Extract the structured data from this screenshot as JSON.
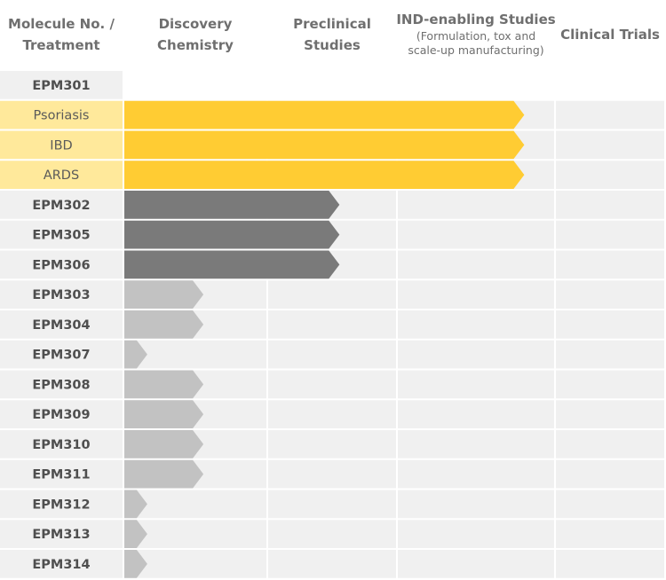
{
  "header": {
    "molecule": [
      "Molecule No. /",
      "Treatment"
    ],
    "phases": [
      {
        "lines": [
          "Discovery",
          "Chemistry"
        ]
      },
      {
        "lines": [
          "Preclinical",
          "Studies"
        ]
      },
      {
        "lines": [
          "IND-enabling Studies"
        ],
        "sub": [
          "(Formulation, tox and",
          "scale-up manufacturing)"
        ]
      },
      {
        "lines": [
          "Clinical Trials"
        ]
      }
    ]
  },
  "colors": {
    "label_bg": "#f0f0f0",
    "label_bg_indication": "#ffe99b",
    "cell_bg": "#f0f0f0",
    "bar_indication": "#ffcc33",
    "bar_preclinical": "#7a7a7a",
    "bar_discovery": "#c2c2c2"
  },
  "chart_data": {
    "type": "bar",
    "orientation": "horizontal",
    "stages": [
      "Discovery Chemistry",
      "Preclinical Studies",
      "IND-enabling Studies",
      "Clinical Trials"
    ],
    "rows": [
      {
        "label": "EPM301",
        "kind": "group",
        "progress": null
      },
      {
        "label": "Psoriasis",
        "kind": "indication",
        "progress": 2.8
      },
      {
        "label": "IBD",
        "kind": "indication",
        "progress": 2.8
      },
      {
        "label": "ARDS",
        "kind": "indication",
        "progress": 2.8
      },
      {
        "label": "EPM302",
        "kind": "preclinical",
        "progress": 1.55
      },
      {
        "label": "EPM305",
        "kind": "preclinical",
        "progress": 1.55
      },
      {
        "label": "EPM306",
        "kind": "preclinical",
        "progress": 1.55
      },
      {
        "label": "EPM303",
        "kind": "discovery",
        "progress": 0.55
      },
      {
        "label": "EPM304",
        "kind": "discovery",
        "progress": 0.55
      },
      {
        "label": "EPM307",
        "kind": "discovery",
        "progress": 0.16
      },
      {
        "label": "EPM308",
        "kind": "discovery",
        "progress": 0.55
      },
      {
        "label": "EPM309",
        "kind": "discovery",
        "progress": 0.55
      },
      {
        "label": "EPM310",
        "kind": "discovery",
        "progress": 0.55
      },
      {
        "label": "EPM311",
        "kind": "discovery",
        "progress": 0.55
      },
      {
        "label": "EPM312",
        "kind": "discovery",
        "progress": 0.16
      },
      {
        "label": "EPM313",
        "kind": "discovery",
        "progress": 0.16
      },
      {
        "label": "EPM314",
        "kind": "discovery",
        "progress": 0.16
      }
    ]
  }
}
